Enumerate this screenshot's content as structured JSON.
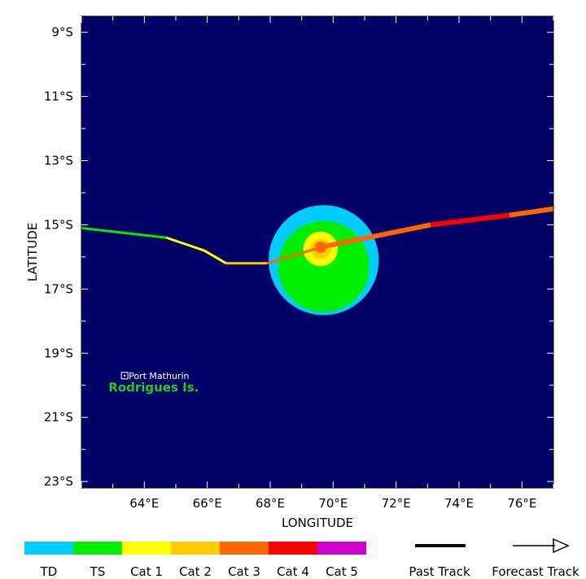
{
  "map": {
    "xlabel": "LONGITUDE",
    "ylabel": "LATITUDE",
    "lon_range": [
      62,
      77
    ],
    "lat_range": [
      -23.2,
      -8.5
    ],
    "background_color": "#000066",
    "lon_ticks": [
      {
        "value": 64,
        "label": "64°E"
      },
      {
        "value": 66,
        "label": "66°E"
      },
      {
        "value": 68,
        "label": "68°E"
      },
      {
        "value": 70,
        "label": "70°E"
      },
      {
        "value": 72,
        "label": "72°E"
      },
      {
        "value": 74,
        "label": "74°E"
      },
      {
        "value": 76,
        "label": "76°E"
      }
    ],
    "lat_ticks": [
      {
        "value": -9,
        "label": "9°S"
      },
      {
        "value": -11,
        "label": "11°S"
      },
      {
        "value": -13,
        "label": "13°S"
      },
      {
        "value": -15,
        "label": "15°S"
      },
      {
        "value": -17,
        "label": "17°S"
      },
      {
        "value": -19,
        "label": "19°S"
      },
      {
        "value": -21,
        "label": "21°S"
      },
      {
        "value": -23,
        "label": "23°S"
      }
    ],
    "places": [
      {
        "name": "Port Mathurin",
        "lon": 63.4,
        "lat": -19.7
      },
      {
        "name": "Rodrigues Is.",
        "lon": 63.3,
        "lat": -20.0,
        "color": "#22cc22"
      }
    ],
    "wind_field": {
      "center": {
        "lon": 69.7,
        "lat": -16.1
      },
      "outer_radius_deg": 1.75,
      "outer_color": "#00ccff",
      "inner_center": {
        "lon": 69.7,
        "lat": -16.3
      },
      "inner_radius_deg": 1.45,
      "inner_color": "#00ee00",
      "core": {
        "lon": 69.6,
        "lat": -15.75
      },
      "core_outer_radius_deg": 0.55,
      "core_outer_color": "#ffff00",
      "core_inner_radius_deg": 0.32,
      "core_inner_color": "#ffcc00"
    },
    "storm_position": {
      "lon": 69.6,
      "lat": -15.7,
      "color": "#ff6600"
    },
    "past_track": [
      {
        "lon": 62.0,
        "lat": -15.1,
        "color": "#00ee00"
      },
      {
        "lon": 64.7,
        "lat": -15.4,
        "color": "#00ee00"
      },
      {
        "lon": 65.9,
        "lat": -15.8,
        "color": "#ffff00"
      },
      {
        "lon": 66.6,
        "lat": -16.2,
        "color": "#ffff00"
      },
      {
        "lon": 67.9,
        "lat": -16.2,
        "color": "#ffcc00"
      },
      {
        "lon": 69.6,
        "lat": -15.7,
        "color": "#ff6600"
      }
    ],
    "forecast_track": [
      {
        "lon": 69.6,
        "lat": -15.7,
        "color": "#ff6600"
      },
      {
        "lon": 73.1,
        "lat": -15.0,
        "color": "#ff6600"
      },
      {
        "lon": 75.6,
        "lat": -14.7,
        "color": "#ff0000"
      },
      {
        "lon": 77.0,
        "lat": -14.5,
        "color": "#ff6600"
      }
    ]
  },
  "legend": {
    "categories": [
      {
        "label": "TD",
        "color": "#00ccff"
      },
      {
        "label": "TS",
        "color": "#00ee00"
      },
      {
        "label": "Cat 1",
        "color": "#ffff00"
      },
      {
        "label": "Cat 2",
        "color": "#ffcc00"
      },
      {
        "label": "Cat 3",
        "color": "#ff6600"
      },
      {
        "label": "Cat 4",
        "color": "#ff0000"
      },
      {
        "label": "Cat 5",
        "color": "#cc00cc"
      }
    ],
    "past_track_label": "Past Track",
    "forecast_track_label": "Forecast Track"
  }
}
